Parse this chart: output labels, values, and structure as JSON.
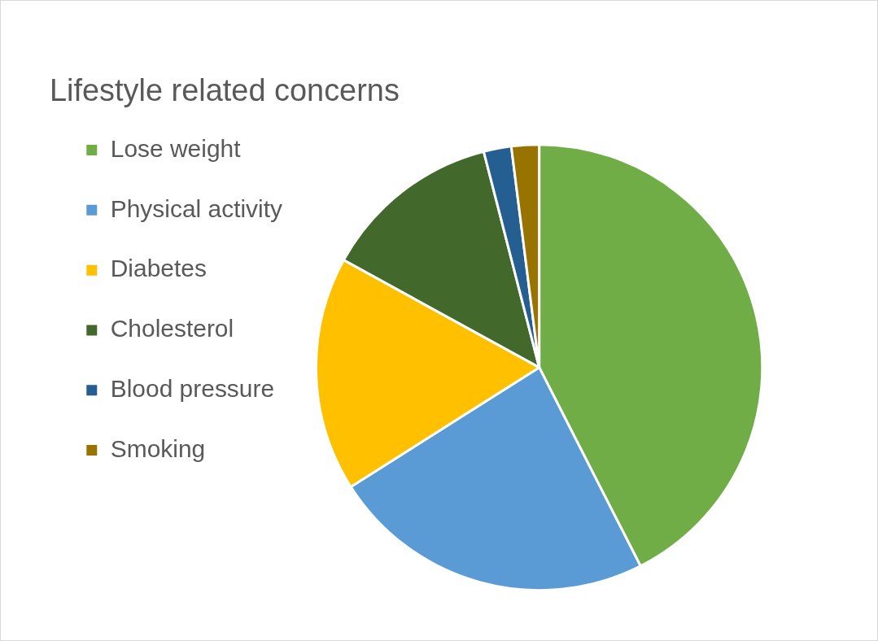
{
  "chart_data": {
    "type": "pie",
    "title": "Lifestyle related concerns",
    "categories": [
      "Lose weight",
      "Physical activity",
      "Diabetes",
      "Cholesterol",
      "Blood pressure",
      "Smoking"
    ],
    "values": [
      42.5,
      23.5,
      17,
      13,
      2,
      2
    ],
    "colors": [
      "#70ad47",
      "#5b9bd5",
      "#ffc000",
      "#43682b",
      "#255e91",
      "#997300"
    ],
    "legend": "left"
  }
}
